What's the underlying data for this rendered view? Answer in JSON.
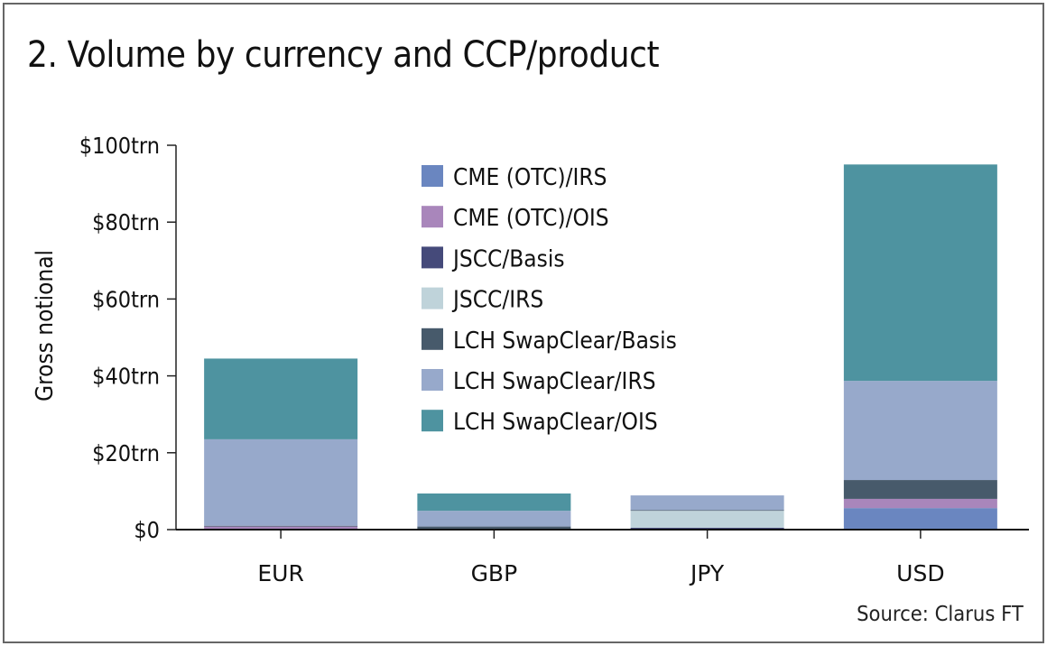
{
  "chart_data": {
    "type": "bar",
    "stacked": true,
    "title": "2. Volume by currency and CCP/product",
    "ylabel": "Gross notional",
    "xlabel": "",
    "ylim": [
      0,
      100
    ],
    "yticks": [
      0,
      20,
      40,
      60,
      80,
      100
    ],
    "ytick_labels": [
      "$0",
      "$20trn",
      "$40trn",
      "$60trn",
      "$80trn",
      "$100trn"
    ],
    "categories": [
      "EUR",
      "GBP",
      "JPY",
      "USD"
    ],
    "legend_position": "top-center",
    "series": [
      {
        "name": "CME (OTC)/IRS",
        "color": "#6a86c0",
        "values": [
          0,
          0,
          0,
          5.6
        ]
      },
      {
        "name": "CME (OTC)/OIS",
        "color": "#a986bb",
        "values": [
          0.8,
          0,
          0,
          2.4
        ]
      },
      {
        "name": "JSCC/Basis",
        "color": "#454a7a",
        "values": [
          0,
          0,
          0.5,
          0
        ]
      },
      {
        "name": "JSCC/IRS",
        "color": "#bfd3da",
        "values": [
          0,
          0,
          4.4,
          0
        ]
      },
      {
        "name": "LCH SwapClear/Basis",
        "color": "#475a6b",
        "values": [
          0.2,
          0.8,
          0.2,
          4.9
        ]
      },
      {
        "name": "LCH SwapClear/IRS",
        "color": "#97a9cb",
        "values": [
          22.5,
          4.1,
          3.8,
          25.8
        ]
      },
      {
        "name": "LCH SwapClear/OIS",
        "color": "#4e93a0",
        "values": [
          21,
          4.5,
          0,
          56.3
        ]
      }
    ],
    "source": "Source: Clarus FT"
  }
}
